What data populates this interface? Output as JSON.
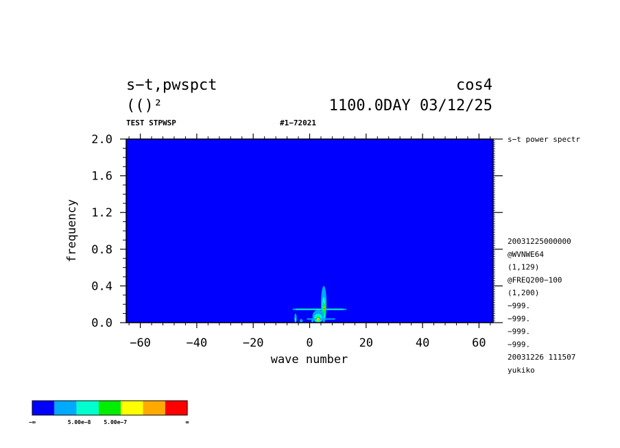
{
  "header": {
    "title_left_1": "s−t,pwspct",
    "title_left_2": "(()²",
    "title_right_1": "cos4",
    "title_right_2": "1100.0DAY 03/12/25",
    "subtitle_left": "TEST STPWSP",
    "subtitle_mid": "#1−72021"
  },
  "side_info": {
    "top_label": "s−t power spectr",
    "lines": [
      "20031225000000",
      "@WVNWE64",
      "(1,129)",
      "@FREQ200−100",
      "(1,200)",
      "−999.",
      "−999.",
      "−999.",
      "−999.",
      "20031226 111507",
      "yukiko"
    ]
  },
  "colors": {
    "background_field": "#0000ff",
    "levels": [
      "#0000ff",
      "#00aaff",
      "#00ffcc",
      "#00ee00",
      "#ffff00",
      "#ffaa00",
      "#ff0000"
    ]
  },
  "legend": {
    "labels": [
      "−∞",
      "5.00e−8",
      "5.00e−7",
      "∞"
    ]
  },
  "chart_data": {
    "type": "heatmap",
    "xlabel": "wave number",
    "ylabel": "frequency",
    "xlim": [
      -65,
      65
    ],
    "ylim": [
      0,
      2.0
    ],
    "x_ticks": [
      -60,
      -40,
      -20,
      0,
      20,
      40,
      60
    ],
    "x_tick_labels": [
      "−60",
      "−40",
      "−20",
      "0",
      "20",
      "40",
      "60"
    ],
    "y_ticks": [
      0.0,
      0.4,
      0.8,
      1.2,
      1.6,
      2.0
    ],
    "y_tick_labels": [
      "0.0",
      "0.4",
      "0.8",
      "1.2",
      "1.6",
      "2.0"
    ],
    "features": [
      {
        "level": 1,
        "shape": "hline",
        "x0": -6,
        "x1": 13,
        "y": 0.145
      },
      {
        "level": 2,
        "shape": "hline",
        "x0": -5,
        "x1": 12,
        "y": 0.145
      },
      {
        "level": 1,
        "shape": "ellipse",
        "cx": 5,
        "cy": 0.2,
        "rx": 1.0,
        "ry": 0.2
      },
      {
        "level": 2,
        "shape": "ellipse",
        "cx": 5,
        "cy": 0.16,
        "rx": 0.6,
        "ry": 0.12
      },
      {
        "level": 3,
        "shape": "ellipse",
        "cx": 5,
        "cy": 0.15,
        "rx": 0.4,
        "ry": 0.07
      },
      {
        "level": 1,
        "shape": "ellipse",
        "cx": 3,
        "cy": 0.07,
        "rx": 2.0,
        "ry": 0.07
      },
      {
        "level": 2,
        "shape": "ellipse",
        "cx": 3,
        "cy": 0.05,
        "rx": 1.4,
        "ry": 0.045
      },
      {
        "level": 3,
        "shape": "ellipse",
        "cx": 3,
        "cy": 0.04,
        "rx": 0.8,
        "ry": 0.025
      },
      {
        "level": 1,
        "shape": "hline",
        "x0": -1,
        "x1": 9,
        "y": 0.04
      },
      {
        "level": 1,
        "shape": "ellipse",
        "cx": -5,
        "cy": 0.05,
        "rx": 0.4,
        "ry": 0.05
      },
      {
        "level": 2,
        "shape": "ellipse",
        "cx": -5,
        "cy": 0.03,
        "rx": 0.3,
        "ry": 0.025
      },
      {
        "level": 1,
        "shape": "ellipse",
        "cx": -3,
        "cy": 0.02,
        "rx": 0.5,
        "ry": 0.02
      },
      {
        "level": 1,
        "shape": "ellipse",
        "cx": 1,
        "cy": 0.02,
        "rx": 0.4,
        "ry": 0.015
      },
      {
        "level": 4,
        "shape": "ellipse",
        "cx": 5,
        "cy": 0.155,
        "rx": 0.3,
        "ry": 0.02
      },
      {
        "level": 5,
        "shape": "ellipse",
        "cx": 5,
        "cy": 0.155,
        "rx": 0.22,
        "ry": 0.014
      },
      {
        "level": 6,
        "shape": "ellipse",
        "cx": 5,
        "cy": 0.155,
        "rx": 0.15,
        "ry": 0.01
      },
      {
        "level": 4,
        "shape": "ellipse",
        "cx": 3,
        "cy": 0.035,
        "rx": 0.5,
        "ry": 0.015
      },
      {
        "level": 5,
        "shape": "ellipse",
        "cx": 3,
        "cy": 0.035,
        "rx": 0.3,
        "ry": 0.01
      }
    ]
  }
}
